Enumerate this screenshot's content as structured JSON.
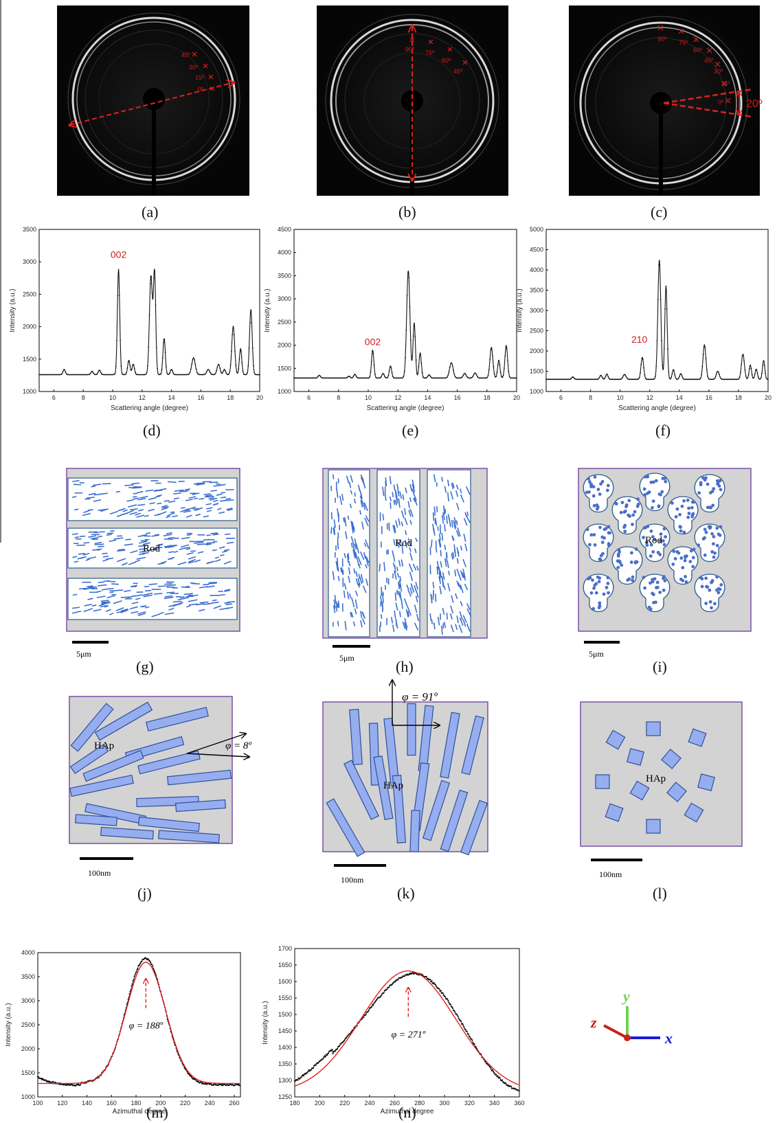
{
  "panel_labels": {
    "a": "(a)",
    "b": "(b)",
    "c": "(c)",
    "d": "(d)",
    "e": "(e)",
    "f": "(f)",
    "g": "(g)",
    "h": "(h)",
    "i": "(i)",
    "j": "(j)",
    "k": "(k)",
    "l": "(l)",
    "m": "(m)",
    "n": "(n)"
  },
  "xrd_images": {
    "a_angles": [
      "45º",
      "30º",
      "15º",
      "0º"
    ],
    "b_angles": [
      "90º",
      "75º",
      "60º",
      "45º"
    ],
    "c_angles": [
      "90º",
      "75º",
      "60º",
      "45º",
      "30º",
      "15º",
      "0º"
    ],
    "c_cone": "20º"
  },
  "schematics": {
    "rod_label": "Rod",
    "hap_label": "HAp",
    "scale_um": "5μm",
    "scale_nm": "100nm",
    "phi_j": "φ = 8º",
    "phi_k": "φ = 91º"
  },
  "axes": {
    "x": "x",
    "y": "y",
    "z": "z"
  },
  "chart_data": [
    {
      "id": "d",
      "type": "line",
      "xlabel": "Scattering angle (degree)",
      "ylabel": "Intensity (a.u.)",
      "xlim": [
        5,
        20
      ],
      "ylim": [
        1000,
        3500
      ],
      "xticks": [
        6,
        8,
        10,
        12,
        14,
        16,
        18,
        20
      ],
      "yticks": [
        1000,
        1500,
        2000,
        2500,
        3000,
        3500
      ],
      "baseline": 1260,
      "peaks": [
        [
          6.7,
          80,
          0.08
        ],
        [
          8.6,
          50,
          0.08
        ],
        [
          9.1,
          70,
          0.08
        ],
        [
          10.4,
          1620,
          0.08
        ],
        [
          11.1,
          220,
          0.08
        ],
        [
          11.4,
          160,
          0.08
        ],
        [
          12.6,
          1520,
          0.1
        ],
        [
          12.85,
          1560,
          0.08
        ],
        [
          13.5,
          560,
          0.08
        ],
        [
          14.0,
          80,
          0.08
        ],
        [
          15.5,
          260,
          0.12
        ],
        [
          16.5,
          80,
          0.1
        ],
        [
          17.2,
          160,
          0.1
        ],
        [
          17.6,
          80,
          0.08
        ],
        [
          18.2,
          740,
          0.1
        ],
        [
          18.7,
          400,
          0.08
        ],
        [
          19.4,
          1000,
          0.09
        ]
      ],
      "annotation": {
        "text": "002",
        "x": 10.4,
        "y": 3060
      }
    },
    {
      "id": "e",
      "type": "line",
      "xlabel": "Scattering angle (degree)",
      "ylabel": "Intensity (a.u.)",
      "xlim": [
        5,
        20
      ],
      "ylim": [
        1000,
        4500
      ],
      "xticks": [
        6,
        8,
        10,
        12,
        14,
        16,
        18,
        20
      ],
      "yticks": [
        1000,
        1500,
        2000,
        2500,
        3000,
        3500,
        4000,
        4500
      ],
      "baseline": 1290,
      "peaks": [
        [
          6.7,
          60,
          0.08
        ],
        [
          8.7,
          40,
          0.08
        ],
        [
          9.1,
          80,
          0.08
        ],
        [
          10.3,
          600,
          0.08
        ],
        [
          11.0,
          100,
          0.08
        ],
        [
          11.5,
          260,
          0.08
        ],
        [
          12.7,
          2320,
          0.11
        ],
        [
          13.1,
          1180,
          0.08
        ],
        [
          13.5,
          540,
          0.08
        ],
        [
          14.1,
          70,
          0.08
        ],
        [
          15.6,
          330,
          0.12
        ],
        [
          16.5,
          100,
          0.1
        ],
        [
          17.2,
          110,
          0.1
        ],
        [
          18.3,
          660,
          0.1
        ],
        [
          18.8,
          380,
          0.08
        ],
        [
          19.3,
          700,
          0.09
        ]
      ],
      "annotation": {
        "text": "002",
        "x": 10.3,
        "y": 2000
      }
    },
    {
      "id": "f",
      "type": "line",
      "xlabel": "Scattering angle (degree)",
      "ylabel": "Intensity (a.u.)",
      "xlim": [
        5,
        20
      ],
      "ylim": [
        1000,
        5000
      ],
      "xticks": [
        6,
        8,
        10,
        12,
        14,
        16,
        18,
        20
      ],
      "yticks": [
        1000,
        1500,
        2000,
        2500,
        3000,
        3500,
        4000,
        4500,
        5000
      ],
      "baseline": 1300,
      "peaks": [
        [
          6.8,
          60,
          0.08
        ],
        [
          8.7,
          100,
          0.08
        ],
        [
          9.1,
          130,
          0.08
        ],
        [
          10.3,
          120,
          0.1
        ],
        [
          11.5,
          540,
          0.09
        ],
        [
          12.65,
          2950,
          0.1
        ],
        [
          13.1,
          2300,
          0.08
        ],
        [
          13.6,
          240,
          0.08
        ],
        [
          14.1,
          140,
          0.08
        ],
        [
          15.7,
          850,
          0.1
        ],
        [
          16.6,
          200,
          0.1
        ],
        [
          18.3,
          620,
          0.1
        ],
        [
          18.8,
          350,
          0.08
        ],
        [
          19.2,
          250,
          0.08
        ],
        [
          19.7,
          460,
          0.08
        ]
      ],
      "annotation": {
        "text": "210",
        "x": 11.3,
        "y": 2200
      }
    },
    {
      "id": "m",
      "type": "scatter",
      "xlabel": "Azimuthal degree",
      "ylabel": "Intensity (a.u.)",
      "xlim": [
        100,
        265
      ],
      "ylim": [
        1000,
        4000
      ],
      "xticks": [
        100,
        120,
        140,
        160,
        180,
        200,
        220,
        240,
        260
      ],
      "yticks": [
        1000,
        1500,
        2000,
        2500,
        3000,
        3500,
        4000
      ],
      "fit": {
        "center": 188,
        "amplitude": 2520,
        "sigma": 16,
        "baseline": 1280
      },
      "annotation": "φ = 188º"
    },
    {
      "id": "n",
      "type": "scatter",
      "xlabel": "Azimuthal degree",
      "ylabel": "Intensity (a.u.)",
      "xlim": [
        180,
        360
      ],
      "ylim": [
        1250,
        1700
      ],
      "xticks": [
        180,
        200,
        220,
        240,
        260,
        280,
        300,
        320,
        340,
        360
      ],
      "yticks": [
        1250,
        1300,
        1350,
        1400,
        1450,
        1500,
        1550,
        1600,
        1650,
        1700
      ],
      "fit": {
        "center": 271,
        "amplitude": 370,
        "sigma": 38,
        "baseline": 1262
      },
      "annotation": "φ = 271º"
    }
  ]
}
